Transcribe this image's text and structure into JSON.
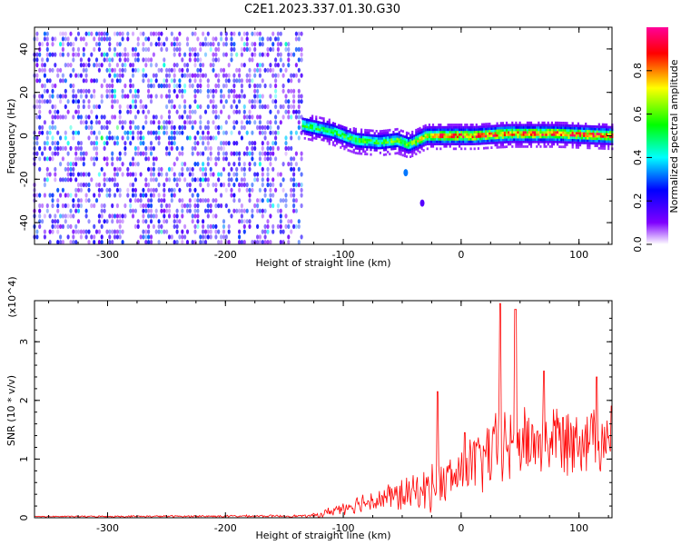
{
  "title": "C2E1.2023.337.01.30.G30",
  "chart_data": [
    {
      "type": "heatmap",
      "xlabel": "Height of straight line (km)",
      "ylabel": "Frequency (Hz)",
      "xlim": [
        -362,
        128
      ],
      "ylim": [
        -50,
        50
      ],
      "x_ticks": [
        -300,
        -200,
        -100,
        0,
        100
      ],
      "y_ticks": [
        -40,
        -20,
        0,
        20,
        40
      ],
      "colorbar": {
        "label": "Normalized spectral amplitude",
        "range": [
          0,
          1
        ],
        "ticks": [
          "0.0",
          "0.2",
          "0.4",
          "0.6",
          "0.8"
        ],
        "colors": [
          "#ffffff",
          "#7f00ff",
          "#0000ff",
          "#00ffff",
          "#00ff00",
          "#ffff00",
          "#ff0000",
          "#ff00aa"
        ]
      },
      "regions": [
        {
          "x_range": [
            -362,
            -135
          ],
          "freq_range": [
            -50,
            50
          ],
          "amplitude_range": [
            0.05,
            0.5
          ],
          "description_level": "scattered noise"
        },
        {
          "x_range": [
            -135,
            128
          ],
          "freq_center": 0,
          "freq_halfwidth": 4,
          "amplitude_range": [
            0.3,
            1.0
          ],
          "description_level": "narrow band"
        }
      ],
      "signal_centerline": {
        "x": [
          -135,
          -110,
          -90,
          -70,
          -55,
          -45,
          -30,
          -10,
          10,
          40,
          80,
          128
        ],
        "freq": [
          5,
          2,
          -2,
          -3,
          -2,
          -4,
          0,
          0,
          0,
          1,
          1,
          0
        ]
      },
      "isolated_blobs": [
        {
          "x": -47,
          "freq": -17
        },
        {
          "x": -33,
          "freq": -31
        }
      ]
    },
    {
      "type": "line",
      "xlabel": "Height of straight line (km)",
      "ylabel": "SNR (10 * v/v)",
      "y_multiplier": "(x10^4)",
      "xlim": [
        -362,
        128
      ],
      "ylim": [
        0,
        3.7
      ],
      "x_ticks": [
        -300,
        -200,
        -100,
        0,
        100
      ],
      "y_ticks": [
        0,
        1,
        2,
        3
      ],
      "color": "#ff0000",
      "envelope": {
        "x": [
          -362,
          -130,
          -120,
          -100,
          -80,
          -60,
          -40,
          -20,
          0,
          20,
          40,
          60,
          80,
          100,
          128
        ],
        "mean": [
          0.02,
          0.03,
          0.05,
          0.18,
          0.28,
          0.35,
          0.42,
          0.55,
          0.75,
          1.05,
          1.25,
          1.3,
          1.35,
          1.4,
          1.4
        ],
        "amp": [
          0.01,
          0.02,
          0.05,
          0.12,
          0.18,
          0.25,
          0.3,
          0.4,
          0.45,
          0.6,
          0.7,
          0.6,
          0.6,
          0.6,
          0.55
        ]
      },
      "peaks": [
        {
          "x": 33,
          "y": 3.65
        },
        {
          "x": 46,
          "y": 3.55
        },
        {
          "x": 70,
          "y": 2.5
        },
        {
          "x": -20,
          "y": 2.15
        },
        {
          "x": 115,
          "y": 2.4
        },
        {
          "x": 3,
          "y": 1.45
        }
      ]
    }
  ]
}
